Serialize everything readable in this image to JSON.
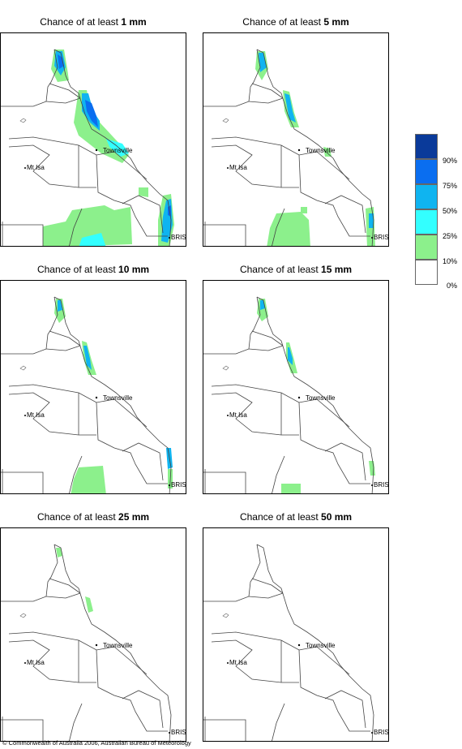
{
  "panels": [
    {
      "prefix": "Chance of at least ",
      "amount": "1 mm"
    },
    {
      "prefix": "Chance of at least ",
      "amount": "5 mm"
    },
    {
      "prefix": "Chance of at least ",
      "amount": "10 mm"
    },
    {
      "prefix": "Chance of at least ",
      "amount": "15 mm"
    },
    {
      "prefix": "Chance of at least ",
      "amount": "25 mm"
    },
    {
      "prefix": "Chance of at least ",
      "amount": "50 mm"
    }
  ],
  "places": {
    "townsville": "Townsville",
    "mt_isa": "Mt Isa",
    "bris": "BRIS"
  },
  "legend": {
    "labels": [
      "90%",
      "75%",
      "50%",
      "25%",
      "10%",
      "0%"
    ],
    "colors": [
      "#0a3a9a",
      "#0a6ef0",
      "#0fb4f0",
      "#33ffff",
      "#8cf08c",
      "#ffffff"
    ]
  },
  "footer": "© Commonwealth of Australia 2006, Australian Bureau of Meteorology"
}
